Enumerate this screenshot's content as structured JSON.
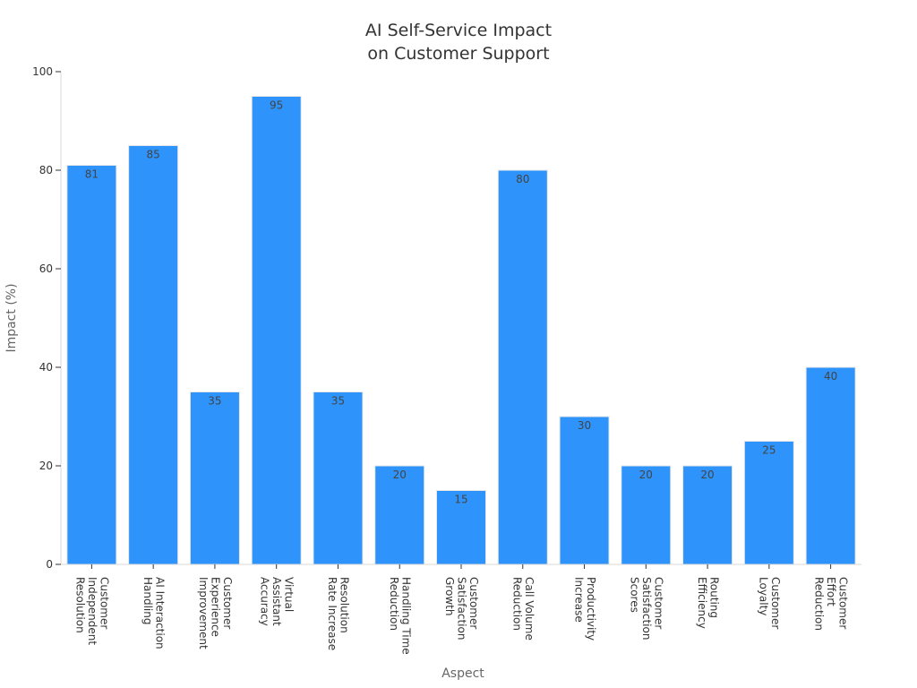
{
  "chart_data": {
    "type": "bar",
    "title_lines": [
      "AI Self-Service Impact",
      "on Customer Support"
    ],
    "xlabel": "Aspect",
    "ylabel": "Impact (%)",
    "ylim": [
      0,
      100
    ],
    "yticks": [
      0,
      20,
      40,
      60,
      80,
      100
    ],
    "grid": false,
    "bar_color": "#2e93fa",
    "categories": [
      {
        "lines": [
          "Customer",
          "Independent",
          "Resolution"
        ],
        "value": 81
      },
      {
        "lines": [
          "AI Interaction",
          "Handling"
        ],
        "value": 85
      },
      {
        "lines": [
          "Customer",
          "Experience",
          "Improvement"
        ],
        "value": 35
      },
      {
        "lines": [
          "Virtual",
          "Assistant",
          "Accuracy"
        ],
        "value": 95
      },
      {
        "lines": [
          "Resolution",
          "Rate Increase"
        ],
        "value": 35
      },
      {
        "lines": [
          "Handling Time",
          "Reduction"
        ],
        "value": 20
      },
      {
        "lines": [
          "Customer",
          "Satisfaction",
          "Growth"
        ],
        "value": 15
      },
      {
        "lines": [
          "Call Volume",
          "Reduction"
        ],
        "value": 80
      },
      {
        "lines": [
          "Productivity",
          "Increase"
        ],
        "value": 30
      },
      {
        "lines": [
          "Customer",
          "Satisfaction",
          "Scores"
        ],
        "value": 20
      },
      {
        "lines": [
          "Routing",
          "Efficiency"
        ],
        "value": 20
      },
      {
        "lines": [
          "Customer",
          "Loyalty"
        ],
        "value": 25
      },
      {
        "lines": [
          "Customer",
          "Effort",
          "Reduction"
        ],
        "value": 40
      }
    ]
  }
}
